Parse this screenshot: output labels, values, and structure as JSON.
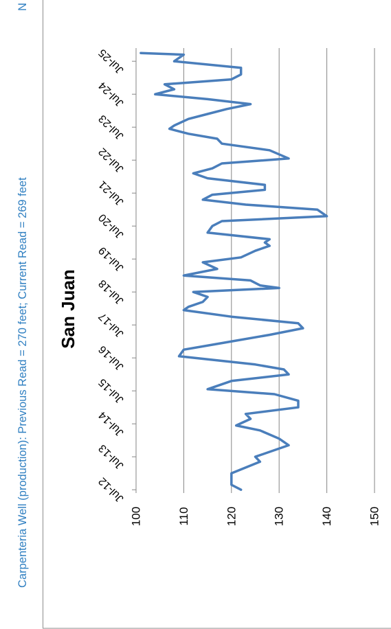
{
  "header": {
    "well_note": "Carpenteria Well (production): Previous Read = 270 feet; Current Read = 269 feet",
    "next_note_fragment": "N"
  },
  "chart_data": {
    "type": "line",
    "title": "San Juan",
    "orientation": "rotated-90-ccw",
    "x_tick_labels": [
      "Jul-12",
      "Jul-13",
      "Jul-14",
      "Jul-15",
      "Jul-16",
      "Jul-17",
      "Jul-18",
      "Jul-19",
      "Jul-20",
      "Jul-21",
      "Jul-22",
      "Jul-23",
      "Jul-24",
      "Jul-25"
    ],
    "ylim": [
      100,
      150
    ],
    "y_ticks": [
      100,
      110,
      120,
      130,
      140,
      150
    ],
    "grid": true,
    "legend": "none",
    "series": [
      {
        "color": "#4a7ebb",
        "x": [
          2012.5,
          2012.65,
          2013.0,
          2013.35,
          2013.5,
          2013.85,
          2014.05,
          2014.3,
          2014.45,
          2014.65,
          2014.8,
          2015.0,
          2015.2,
          2015.4,
          2015.55,
          2015.8,
          2016.0,
          2016.15,
          2016.3,
          2016.55,
          2016.75,
          2016.95,
          2017.2,
          2017.4,
          2017.55,
          2017.75,
          2017.95,
          2018.05,
          2018.2,
          2018.35,
          2018.5,
          2018.62,
          2018.7,
          2018.85,
          2019.0,
          2019.2,
          2019.4,
          2019.55,
          2019.75,
          2019.9,
          2020.0,
          2020.1,
          2020.3,
          2020.5,
          2020.65,
          2020.8,
          2021.0,
          2021.15,
          2021.3,
          2021.45,
          2021.6,
          2021.75,
          2021.95,
          2022.1,
          2022.25,
          2022.4,
          2022.55,
          2022.8,
          2023.0,
          2023.15,
          2023.3,
          2023.45,
          2023.55,
          2023.75,
          2023.9,
          2024.05,
          2024.2,
          2024.35,
          2024.5,
          2024.65,
          2024.8,
          2024.95,
          2025.1,
          2025.3,
          2025.5,
          2025.7,
          2025.75
        ],
        "values": [
          122,
          120,
          120,
          126,
          125,
          132,
          130,
          126,
          121,
          124,
          123,
          134,
          134,
          129,
          115,
          120,
          132,
          131,
          125,
          109,
          110,
          118,
          128,
          135,
          134,
          120,
          110,
          111,
          114,
          115,
          112,
          130,
          126,
          124,
          110,
          117,
          114,
          122,
          125,
          128,
          127,
          128,
          115,
          116,
          118,
          140,
          138,
          123,
          114,
          116,
          127,
          127,
          115,
          112,
          116,
          118,
          132,
          128,
          118,
          117,
          111,
          107,
          108,
          111,
          115,
          119,
          124,
          115,
          104,
          108,
          106,
          120,
          122,
          122,
          108,
          110,
          101
        ]
      }
    ]
  }
}
